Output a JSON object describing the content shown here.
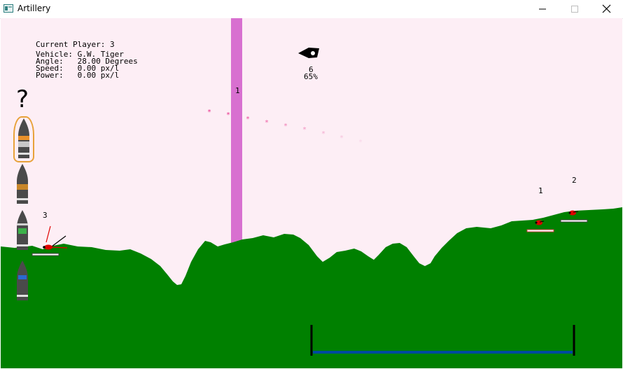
{
  "window": {
    "title": "Artillery",
    "icon": "app-window-icon",
    "controls": [
      "minimize-icon",
      "maximize-icon",
      "close-icon"
    ]
  },
  "hud": {
    "current_player": "Current Player: 3",
    "vehicle": "Vehicle: G.W. Tiger",
    "angle": "Angle:   28.00 Degrees",
    "speed": "Speed:   0.00 px/l",
    "power": "Power:   0.00 px/l"
  },
  "wind": {
    "value": "6",
    "percent": "65%"
  },
  "help_symbol": "?",
  "ammo": [
    {
      "name": "shell-orange",
      "selected": true
    },
    {
      "name": "shell-bronze",
      "selected": false
    },
    {
      "name": "shell-green",
      "selected": false
    },
    {
      "name": "shell-blue",
      "selected": false
    }
  ],
  "players": [
    {
      "id": "3",
      "health": 1.0
    },
    {
      "id": "1",
      "health": 1.0
    },
    {
      "id": "2",
      "health": 1.0
    }
  ],
  "barrier_label": "1",
  "power_meter_level": 1.0,
  "colors": {
    "sky": "#fdeef5",
    "ground": "#008000",
    "barrier": "#d870d0",
    "tank": "#ff0000",
    "trail": "#e8308a",
    "meter": "#004a9f"
  }
}
